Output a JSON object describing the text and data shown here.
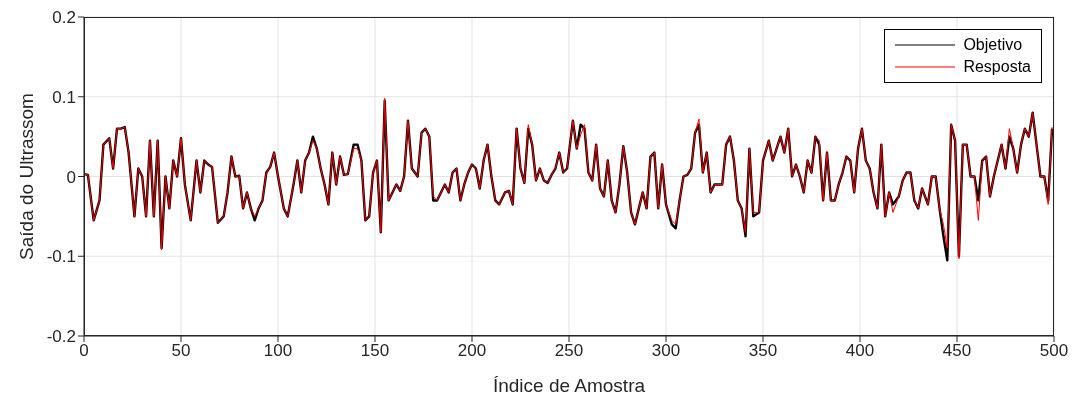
{
  "chart_data": {
    "type": "line",
    "xlabel": "Índice de Amostra",
    "ylabel": "Saída do Ultrassom",
    "x": [
      0,
      2,
      5,
      8,
      10,
      13,
      15,
      17,
      19,
      21,
      23,
      26,
      28,
      30,
      32,
      34,
      36,
      38,
      40,
      42,
      44,
      46,
      48,
      50,
      52,
      55,
      58,
      60,
      62,
      64,
      66,
      69,
      72,
      74,
      76,
      78,
      80,
      82,
      84,
      86,
      88,
      90,
      92,
      94,
      96,
      98,
      100,
      103,
      105,
      108,
      110,
      112,
      114,
      116,
      118,
      120,
      122,
      124,
      126,
      128,
      130,
      132,
      134,
      136,
      139,
      141,
      143,
      145,
      147,
      149,
      151,
      153,
      155,
      157,
      159,
      161,
      163,
      165,
      167,
      169,
      172,
      174,
      176,
      178,
      180,
      182,
      184,
      186,
      188,
      190,
      192,
      194,
      196,
      198,
      200,
      202,
      204,
      206,
      208,
      210,
      212,
      214,
      217,
      219,
      221,
      223,
      225,
      227,
      229,
      231,
      233,
      235,
      237,
      239,
      241,
      243,
      245,
      247,
      249,
      252,
      254,
      256,
      258,
      260,
      262,
      264,
      266,
      268,
      270,
      272,
      274,
      276,
      278,
      280,
      282,
      284,
      286,
      288,
      290,
      292,
      294,
      296,
      298,
      300,
      303,
      305,
      307,
      309,
      311,
      313,
      315,
      317,
      319,
      321,
      323,
      325,
      327,
      329,
      331,
      333,
      335,
      337,
      339,
      341,
      343,
      345,
      348,
      350,
      353,
      355,
      357,
      359,
      361,
      363,
      365,
      367,
      369,
      371,
      373,
      375,
      377,
      379,
      381,
      383,
      385,
      387,
      389,
      391,
      393,
      395,
      397,
      399,
      401,
      403,
      405,
      407,
      409,
      411,
      413,
      415,
      417,
      420,
      422,
      424,
      426,
      428,
      430,
      432,
      435,
      437,
      439,
      441,
      443,
      445,
      447,
      449,
      451,
      453,
      455,
      457,
      459,
      461,
      463,
      465,
      467,
      469,
      471,
      473,
      475,
      477,
      479,
      481,
      483,
      485,
      487,
      489,
      491,
      493,
      495,
      497,
      499
    ],
    "series": [
      {
        "name": "Objetivo",
        "color": "#000000",
        "values": [
          0.003,
          0.002,
          -0.055,
          -0.03,
          0.04,
          0.048,
          0.01,
          0.06,
          0.06,
          0.062,
          0.03,
          -0.05,
          0.01,
          0,
          -0.05,
          0.045,
          -0.05,
          0.045,
          -0.09,
          0,
          -0.04,
          0.02,
          0,
          0.048,
          -0.01,
          -0.055,
          0.02,
          -0.02,
          0.02,
          0.015,
          0.012,
          -0.058,
          -0.05,
          -0.02,
          0.025,
          0,
          0.001,
          -0.04,
          -0.02,
          -0.04,
          -0.055,
          -0.04,
          -0.03,
          0.005,
          0.012,
          0.03,
          0,
          -0.04,
          -0.05,
          -0.01,
          0.02,
          -0.02,
          0.02,
          0.03,
          0.05,
          0.035,
          0.01,
          -0.01,
          -0.035,
          0.03,
          -0.01,
          0.025,
          0.002,
          0.003,
          0.04,
          0.04,
          0.02,
          -0.055,
          -0.05,
          0.005,
          0.02,
          -0.07,
          0.095,
          -0.03,
          -0.02,
          -0.01,
          -0.018,
          0,
          0.07,
          0.01,
          0,
          0.055,
          0.06,
          0.05,
          -0.03,
          -0.03,
          -0.02,
          -0.01,
          -0.02,
          0.005,
          0.01,
          -0.03,
          -0.01,
          0.005,
          0.015,
          0.01,
          -0.015,
          0.02,
          0.04,
          0,
          -0.03,
          -0.035,
          -0.02,
          -0.018,
          -0.035,
          0.06,
          0.01,
          -0.008,
          0.06,
          0.04,
          -0.005,
          0.01,
          -0.005,
          -0.008,
          0.002,
          0.01,
          0.03,
          0.005,
          0.01,
          0.07,
          0.035,
          0.065,
          0.06,
          0.005,
          -0.005,
          0.04,
          -0.015,
          -0.025,
          0.02,
          -0.03,
          -0.045,
          -0.01,
          0.038,
          0.005,
          -0.045,
          -0.06,
          -0.04,
          -0.02,
          -0.04,
          0.025,
          0.03,
          -0.04,
          0.015,
          -0.035,
          -0.06,
          -0.065,
          -0.03,
          0,
          0.002,
          0.01,
          0.055,
          0.065,
          0.005,
          0.03,
          -0.02,
          -0.01,
          -0.01,
          -0.01,
          0.04,
          0.05,
          0.02,
          -0.03,
          -0.04,
          -0.075,
          0.035,
          -0.05,
          -0.045,
          0.02,
          0.045,
          0.02,
          0.035,
          0.05,
          0.03,
          0.06,
          0,
          0.015,
          0,
          -0.02,
          0.02,
          0.005,
          0.05,
          0.04,
          -0.03,
          0.03,
          -0.03,
          -0.03,
          -0.01,
          0.005,
          0.025,
          0.02,
          -0.02,
          0.035,
          0.06,
          0.02,
          0.01,
          -0.02,
          -0.04,
          0.04,
          -0.05,
          -0.02,
          -0.035,
          -0.025,
          -0.005,
          0.005,
          0.005,
          -0.03,
          -0.04,
          -0.015,
          -0.035,
          0,
          0,
          -0.04,
          -0.075,
          -0.105,
          0.065,
          0.045,
          -0.1,
          0.04,
          0.04,
          0,
          0,
          -0.03,
          0.02,
          0.025,
          -0.025,
          0,
          0.02,
          0.04,
          0.01,
          0.05,
          0.035,
          0.005,
          0.04,
          0.06,
          0.05,
          0.08,
          0.04,
          0,
          0,
          -0.03,
          0.06
        ]
      },
      {
        "name": "Resposta",
        "color": "#ff0000",
        "values": [
          0.003,
          0.002,
          -0.055,
          -0.03,
          0.04,
          0.048,
          0.01,
          0.06,
          0.06,
          0.062,
          0.03,
          -0.05,
          0.01,
          0,
          -0.05,
          0.045,
          -0.05,
          0.045,
          -0.092,
          0,
          -0.04,
          0.02,
          0,
          0.048,
          -0.01,
          -0.055,
          0.02,
          -0.02,
          0.02,
          0.015,
          0.012,
          -0.058,
          -0.05,
          -0.02,
          0.025,
          0,
          0.001,
          -0.04,
          -0.02,
          -0.04,
          -0.05,
          -0.04,
          -0.03,
          0.005,
          0.012,
          0.03,
          0,
          -0.04,
          -0.05,
          -0.01,
          0.02,
          -0.02,
          0.02,
          0.03,
          0.045,
          0.035,
          0.01,
          -0.01,
          -0.035,
          0.03,
          -0.01,
          0.025,
          0.002,
          0.003,
          0.035,
          0.035,
          0.02,
          -0.055,
          -0.05,
          0.005,
          0.02,
          -0.07,
          0.098,
          -0.03,
          -0.02,
          -0.01,
          -0.018,
          0,
          0.07,
          0.01,
          0,
          0.055,
          0.06,
          0.05,
          -0.025,
          -0.03,
          -0.02,
          -0.01,
          -0.02,
          0.005,
          0.01,
          -0.03,
          -0.01,
          0.005,
          0.015,
          0.01,
          -0.015,
          0.02,
          0.04,
          0,
          -0.03,
          -0.035,
          -0.02,
          -0.018,
          -0.035,
          0.06,
          0.01,
          -0.008,
          0.065,
          0.04,
          -0.005,
          0.01,
          -0.005,
          -0.008,
          0.002,
          0.01,
          0.03,
          0.005,
          0.01,
          0.07,
          0.035,
          0.052,
          0.065,
          0.005,
          -0.005,
          0.04,
          -0.015,
          -0.025,
          0.02,
          -0.03,
          -0.045,
          -0.01,
          0.038,
          0.005,
          -0.045,
          -0.06,
          -0.04,
          -0.02,
          -0.04,
          0.025,
          0.03,
          -0.04,
          0.015,
          -0.035,
          -0.055,
          -0.06,
          -0.03,
          0,
          0.002,
          0.01,
          0.055,
          0.072,
          0.005,
          0.03,
          -0.02,
          -0.01,
          -0.01,
          -0.01,
          0.04,
          0.05,
          0.02,
          -0.03,
          -0.04,
          -0.07,
          0.035,
          -0.045,
          -0.045,
          0.02,
          0.045,
          0.02,
          0.035,
          0.05,
          0.03,
          0.06,
          0,
          0.015,
          0,
          -0.02,
          0.02,
          0.005,
          0.05,
          0.045,
          -0.03,
          0.03,
          -0.03,
          -0.03,
          -0.01,
          0.005,
          0.025,
          0.02,
          -0.02,
          0.035,
          0.06,
          0.02,
          0.01,
          -0.02,
          -0.04,
          0.04,
          -0.05,
          -0.02,
          -0.045,
          -0.025,
          -0.005,
          0.005,
          0.005,
          -0.03,
          -0.04,
          -0.015,
          -0.035,
          0,
          0,
          -0.04,
          -0.06,
          -0.09,
          0.065,
          0.045,
          -0.103,
          0.04,
          0.04,
          0,
          0,
          -0.055,
          0.02,
          0.025,
          -0.025,
          0,
          0.02,
          0.04,
          0.01,
          0.06,
          0.035,
          0.005,
          0.04,
          0.06,
          0.05,
          0.08,
          0.04,
          0,
          0,
          -0.035,
          0.062
        ]
      }
    ],
    "xlim": [
      0,
      500
    ],
    "xticks": [
      0,
      50,
      100,
      150,
      200,
      250,
      300,
      350,
      400,
      450,
      500
    ],
    "ylim": [
      -0.2,
      0.2
    ],
    "yticks": [
      -0.2,
      -0.1,
      0,
      0.1,
      0.2
    ],
    "grid": true,
    "legend": "top right",
    "marker": "none",
    "line_style": "solid"
  }
}
